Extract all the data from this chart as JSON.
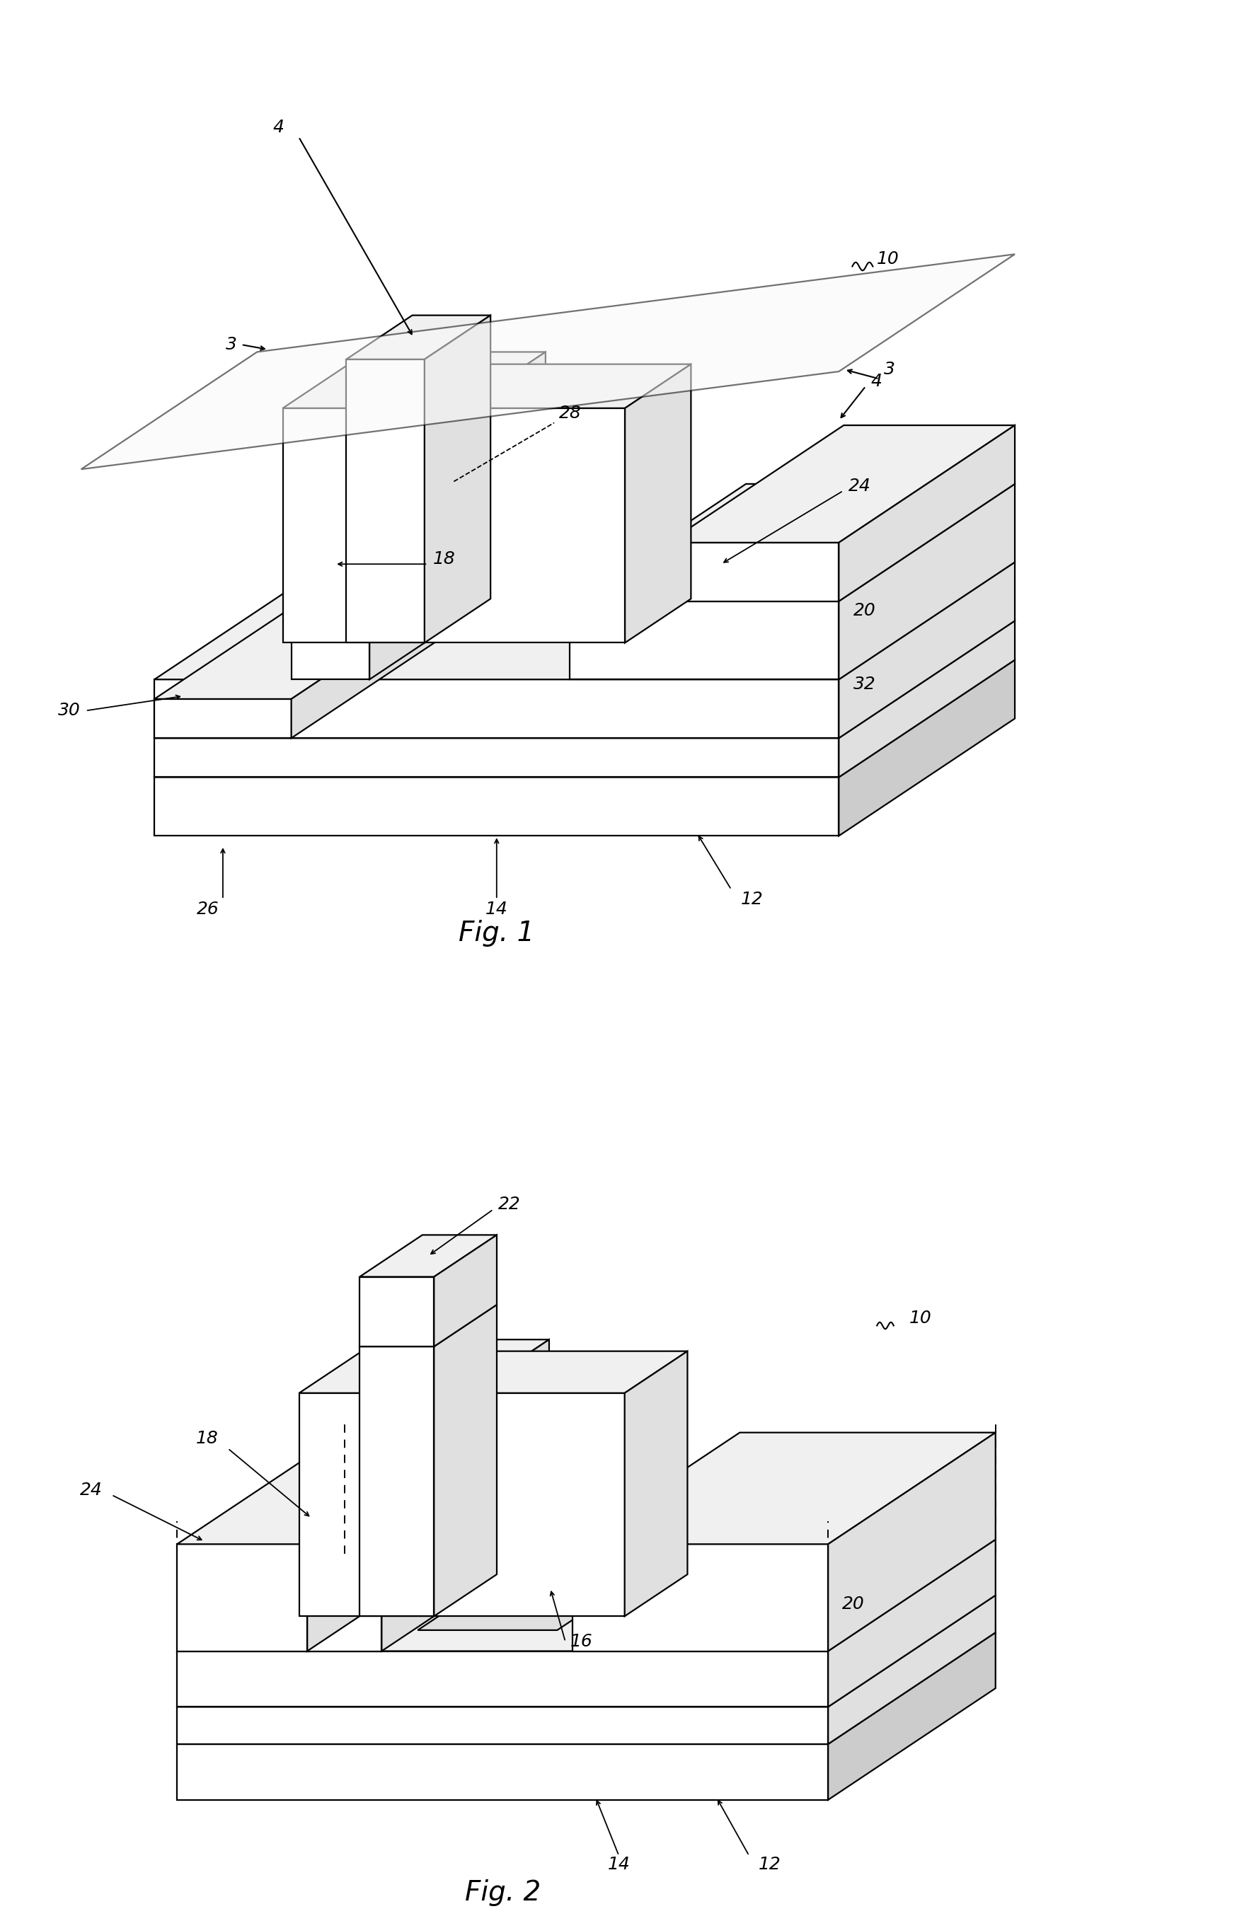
{
  "bg_color": "#ffffff",
  "line_color": "#000000",
  "line_width": 1.6,
  "fig1_title": "Fig. 1",
  "fig2_title": "Fig. 2",
  "font_size_label": 18,
  "font_size_title": 28,
  "fc_white": "#ffffff",
  "fc_light": "#f0f0f0",
  "fc_mid": "#e0e0e0",
  "fc_dark": "#cccccc",
  "ox": 0.45,
  "oy": 0.3
}
